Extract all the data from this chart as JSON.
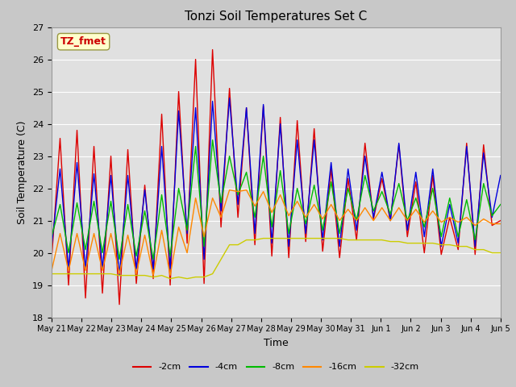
{
  "title": "Tonzi Soil Temperatures Set C",
  "xlabel": "Time",
  "ylabel": "Soil Temperature (C)",
  "ylim": [
    18.0,
    27.0
  ],
  "yticks": [
    18.0,
    19.0,
    20.0,
    21.0,
    22.0,
    23.0,
    24.0,
    25.0,
    26.0,
    27.0
  ],
  "xtick_labels": [
    "May 21",
    "May 22",
    "May 23",
    "May 24",
    "May 25",
    "May 26",
    "May 27",
    "May 28",
    "May 29",
    "May 30",
    "May 31",
    "Jun 1",
    "Jun 2",
    "Jun 3",
    "Jun 4",
    "Jun 5"
  ],
  "annotation_text": "TZ_fmet",
  "annotation_color": "#cc0000",
  "annotation_bg": "#ffffcc",
  "series_colors": [
    "#dd0000",
    "#0000dd",
    "#00bb00",
    "#ff8800",
    "#cccc00"
  ],
  "series_labels": [
    "-2cm",
    "-4cm",
    "-8cm",
    "-16cm",
    "-32cm"
  ],
  "fig_facecolor": "#c8c8c8",
  "plot_bg": "#e0e0e0",
  "grid_color": "#ffffff",
  "title_fontsize": 11,
  "n_points": 16,
  "y_2cm": [
    19.8,
    23.55,
    19.0,
    23.8,
    18.6,
    23.3,
    18.75,
    23.0,
    18.4,
    23.2,
    19.05,
    22.1,
    19.2,
    24.3,
    19.0,
    25.0,
    20.3,
    26.0,
    19.05,
    26.3,
    20.8,
    25.1,
    21.1,
    24.5,
    20.25,
    24.55,
    19.9,
    24.2,
    19.85,
    24.1,
    20.35,
    23.85,
    20.05,
    22.6,
    19.85,
    22.3,
    20.4,
    23.4,
    21.05,
    22.3,
    21.0,
    23.35,
    20.5,
    22.2,
    20.0,
    22.4,
    19.95,
    21.1,
    20.1,
    23.4,
    19.95,
    23.35,
    20.85,
    21.0
  ],
  "y_4cm": [
    20.2,
    22.6,
    19.5,
    22.8,
    19.5,
    22.45,
    19.5,
    22.4,
    19.3,
    22.4,
    19.5,
    21.95,
    19.5,
    23.3,
    19.5,
    24.4,
    20.6,
    24.5,
    19.8,
    24.7,
    21.3,
    24.8,
    21.5,
    24.5,
    20.6,
    24.6,
    20.3,
    24.0,
    20.2,
    23.5,
    20.6,
    23.5,
    20.4,
    22.8,
    20.2,
    22.6,
    20.7,
    23.0,
    21.1,
    22.5,
    21.0,
    23.4,
    20.7,
    22.5,
    20.5,
    22.6,
    20.2,
    21.5,
    20.3,
    23.3,
    20.2,
    23.1,
    21.1,
    22.4
  ],
  "y_8cm": [
    20.5,
    21.5,
    20.0,
    21.55,
    20.1,
    21.6,
    20.0,
    21.6,
    19.8,
    21.5,
    19.9,
    21.3,
    19.8,
    21.8,
    19.9,
    22.0,
    20.7,
    23.3,
    20.2,
    23.5,
    21.55,
    23.0,
    21.8,
    22.5,
    21.1,
    23.0,
    20.8,
    22.55,
    20.6,
    22.0,
    20.9,
    22.1,
    20.7,
    22.2,
    20.6,
    22.0,
    21.0,
    22.4,
    21.3,
    21.9,
    21.2,
    22.15,
    21.0,
    21.7,
    20.8,
    22.0,
    20.5,
    21.7,
    20.5,
    21.65,
    20.4,
    22.15,
    21.15,
    21.5
  ],
  "y_16cm": [
    19.45,
    20.6,
    19.45,
    20.6,
    19.45,
    20.6,
    19.45,
    20.6,
    19.35,
    20.55,
    19.35,
    20.55,
    19.3,
    20.7,
    19.3,
    20.8,
    20.0,
    21.7,
    20.5,
    21.7,
    21.1,
    21.95,
    21.9,
    21.95,
    21.45,
    21.9,
    21.25,
    21.8,
    21.15,
    21.6,
    21.1,
    21.5,
    21.05,
    21.5,
    21.0,
    21.35,
    21.0,
    21.4,
    21.0,
    21.4,
    21.0,
    21.4,
    21.0,
    21.35,
    20.95,
    21.3,
    20.95,
    21.1,
    20.95,
    21.1,
    20.85,
    21.05,
    20.9,
    20.9
  ],
  "y_32cm": [
    19.35,
    19.35,
    19.35,
    19.35,
    19.35,
    19.35,
    19.35,
    19.35,
    19.3,
    19.3,
    19.3,
    19.3,
    19.25,
    19.3,
    19.2,
    19.25,
    19.2,
    19.25,
    19.25,
    19.35,
    19.8,
    20.25,
    20.25,
    20.4,
    20.4,
    20.45,
    20.45,
    20.45,
    20.45,
    20.45,
    20.45,
    20.45,
    20.45,
    20.45,
    20.45,
    20.4,
    20.4,
    20.4,
    20.4,
    20.4,
    20.35,
    20.35,
    20.3,
    20.3,
    20.3,
    20.3,
    20.25,
    20.25,
    20.2,
    20.2,
    20.1,
    20.1,
    20.0,
    20.0
  ]
}
